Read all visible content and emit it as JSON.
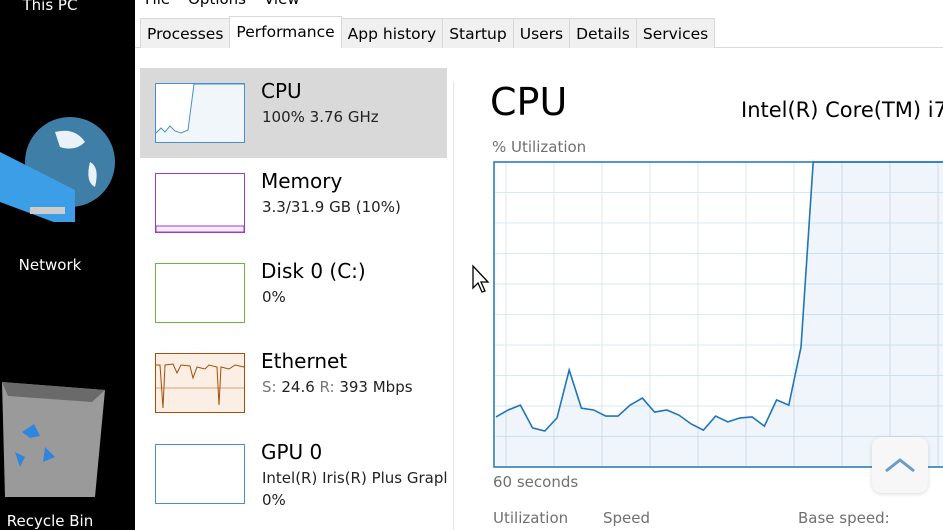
{
  "desktop": {
    "icons": [
      {
        "label": "This PC"
      },
      {
        "label": "Network"
      },
      {
        "label": "Recycle Bin"
      }
    ]
  },
  "menu": [
    "File",
    "Options",
    "View"
  ],
  "tabs": [
    {
      "label": "Processes"
    },
    {
      "label": "Performance",
      "active": true
    },
    {
      "label": "App history"
    },
    {
      "label": "Startup"
    },
    {
      "label": "Users"
    },
    {
      "label": "Details"
    },
    {
      "label": "Services"
    }
  ],
  "sidebar": {
    "items": [
      {
        "name": "CPU",
        "sub": "100%  3.76 GHz",
        "color": "#4a90c8",
        "selected": true
      },
      {
        "name": "Memory",
        "sub": "3.3/31.9 GB (10%)",
        "color": "#9b3fc0",
        "fill_percent": 10
      },
      {
        "name": "Disk 0 (C:)",
        "sub": "0%",
        "color": "#6db33f"
      },
      {
        "name": "Ethernet",
        "send_label": "S:",
        "send": "24.6",
        "recv_label": "R:",
        "recv": "393 Mbps",
        "color": "#a74f08"
      },
      {
        "name": "GPU 0",
        "sub": "Intel(R) Iris(R) Plus Grapl",
        "sub2": "0%",
        "color": "#4a90c8"
      }
    ]
  },
  "main": {
    "title": "CPU",
    "model": "Intel(R) Core(TM) i7",
    "ylabel": "% Utilization",
    "xlabel": "60 seconds",
    "stats": [
      "Utilization",
      "Speed",
      "Base speed:"
    ]
  },
  "chart_data": {
    "type": "area",
    "ylabel": "% Utilization",
    "xlabel": "60 seconds",
    "ylim": [
      0,
      100
    ],
    "grid": true,
    "color": "#1f75b9",
    "values": [
      16.4,
      18.7,
      20.3,
      12.8,
      11.8,
      16.1,
      31.8,
      19.3,
      18.7,
      16.7,
      16.7,
      20.3,
      22.6,
      18,
      18.7,
      17,
      14.1,
      12.1,
      16.7,
      14.8,
      16.1,
      16.4,
      13.4,
      22,
      20.3,
      39.3,
      100,
      100,
      100,
      100,
      100,
      100,
      100,
      100,
      100,
      100,
      100,
      100
    ]
  }
}
